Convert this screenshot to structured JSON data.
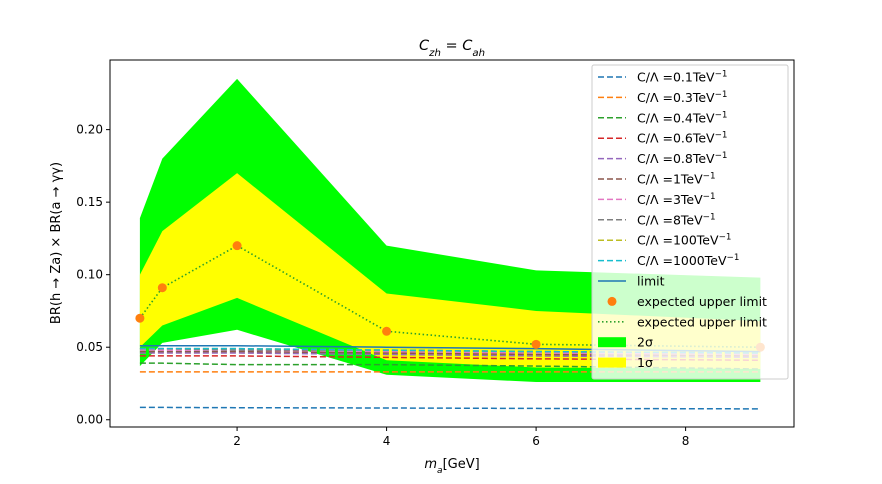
{
  "chart_data": {
    "type": "line",
    "title": "C_zh = C_ah",
    "xlabel": "m_a[GeV]",
    "ylabel": "BR(h → Za) × BR(a → γγ)",
    "xlim": [
      0.3,
      9.45
    ],
    "ylim": [
      -0.005,
      0.248
    ],
    "xticks": [
      2,
      4,
      6,
      8
    ],
    "yticks": [
      0.0,
      0.05,
      0.1,
      0.15,
      0.2
    ],
    "xtick_labels": [
      "2",
      "4",
      "6",
      "8"
    ],
    "ytick_labels": [
      "0.00",
      "0.05",
      "0.10",
      "0.15",
      "0.20"
    ],
    "grid": false,
    "legend_position": "upper right",
    "x": [
      0.7,
      1.0,
      2.0,
      4.0,
      6.0,
      9.0
    ],
    "band_2sigma": {
      "name": "2σ",
      "color": "#00ff00",
      "lower": [
        0.037,
        0.053,
        0.062,
        0.031,
        0.026,
        0.026
      ],
      "upper": [
        0.139,
        0.18,
        0.235,
        0.12,
        0.103,
        0.098
      ]
    },
    "band_1sigma": {
      "name": "1σ",
      "color": "#ffff00",
      "lower": [
        0.05,
        0.065,
        0.084,
        0.041,
        0.036,
        0.035
      ],
      "upper": [
        0.1,
        0.13,
        0.17,
        0.087,
        0.075,
        0.068
      ]
    },
    "expected_points": {
      "name": "expected upper limit",
      "color": "#ff7f0e",
      "values": [
        0.07,
        0.091,
        0.12,
        0.061,
        0.052,
        0.05
      ]
    },
    "expected_line": {
      "name": "expected upper limit",
      "color": "#2ca02c",
      "values": [
        0.07,
        0.091,
        0.12,
        0.061,
        0.052,
        0.05
      ]
    },
    "limit": {
      "name": "limit",
      "color": "#1f77b4",
      "values": [
        0.051,
        0.051,
        0.051,
        0.05,
        0.049,
        0.047
      ]
    },
    "series": [
      {
        "name": "C/Λ =0.1TeV^-1",
        "color": "#1f77b4",
        "values": [
          0.0085,
          0.0085,
          0.0083,
          0.0081,
          0.0078,
          0.0075
        ]
      },
      {
        "name": "C/Λ =0.3TeV^-1",
        "color": "#ff7f0e",
        "values": [
          0.033,
          0.033,
          0.033,
          0.033,
          0.033,
          0.033
        ]
      },
      {
        "name": "C/Λ =0.4TeV^-1",
        "color": "#2ca02c",
        "values": [
          0.039,
          0.039,
          0.038,
          0.038,
          0.037,
          0.035
        ]
      },
      {
        "name": "C/Λ =0.6TeV^-1",
        "color": "#d62728",
        "values": [
          0.044,
          0.044,
          0.044,
          0.043,
          0.042,
          0.041
        ]
      },
      {
        "name": "C/Λ =0.8TeV^-1",
        "color": "#9467bd",
        "values": [
          0.046,
          0.046,
          0.046,
          0.045,
          0.044,
          0.043
        ]
      },
      {
        "name": "C/Λ =1TeV^-1",
        "color": "#8c564b",
        "values": [
          0.047,
          0.047,
          0.047,
          0.046,
          0.045,
          0.044
        ]
      },
      {
        "name": "C/Λ =3TeV^-1",
        "color": "#e377c2",
        "values": [
          0.048,
          0.048,
          0.048,
          0.047,
          0.046,
          0.045
        ]
      },
      {
        "name": "C/Λ =8TeV^-1",
        "color": "#7f7f7f",
        "values": [
          0.049,
          0.049,
          0.048,
          0.048,
          0.047,
          0.046
        ]
      },
      {
        "name": "C/Λ =100TeV^-1",
        "color": "#bcbd22",
        "values": [
          0.049,
          0.049,
          0.049,
          0.048,
          0.047,
          0.046
        ]
      },
      {
        "name": "C/Λ =1000TeV^-1",
        "color": "#17becf",
        "values": [
          0.049,
          0.049,
          0.049,
          0.048,
          0.047,
          0.046
        ]
      }
    ]
  }
}
